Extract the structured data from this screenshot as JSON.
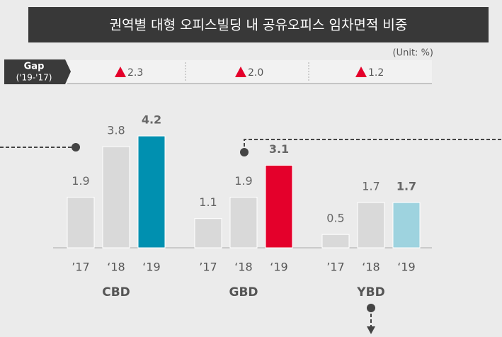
{
  "chart_data": {
    "type": "bar",
    "title": "권역별 대형 오피스빌딩 내 공유오피스 임차면적 비중",
    "unit": "(Unit: %)",
    "gap": {
      "label": "Gap",
      "period": "('19-'17)",
      "values": [
        2.3,
        2,
        1.2
      ],
      "value_labels": [
        "2.3",
        "2.0",
        "1.2"
      ],
      "color": "#e4002b"
    },
    "categories": [
      "CBD",
      "GBD",
      "YBD"
    ],
    "series": [
      {
        "name": "’17",
        "color": "#d9d9d9",
        "values": [
          1.9,
          1.1,
          0.5
        ]
      },
      {
        "name": "‘18",
        "color": "#d9d9d9",
        "values": [
          3.8,
          1.9,
          1.7
        ]
      },
      {
        "name": "‘19",
        "colors": [
          "#0090b0",
          "#e4002b",
          "#9ed3df"
        ],
        "values": [
          4.2,
          3.1,
          1.7
        ],
        "bold": true
      }
    ]
  }
}
